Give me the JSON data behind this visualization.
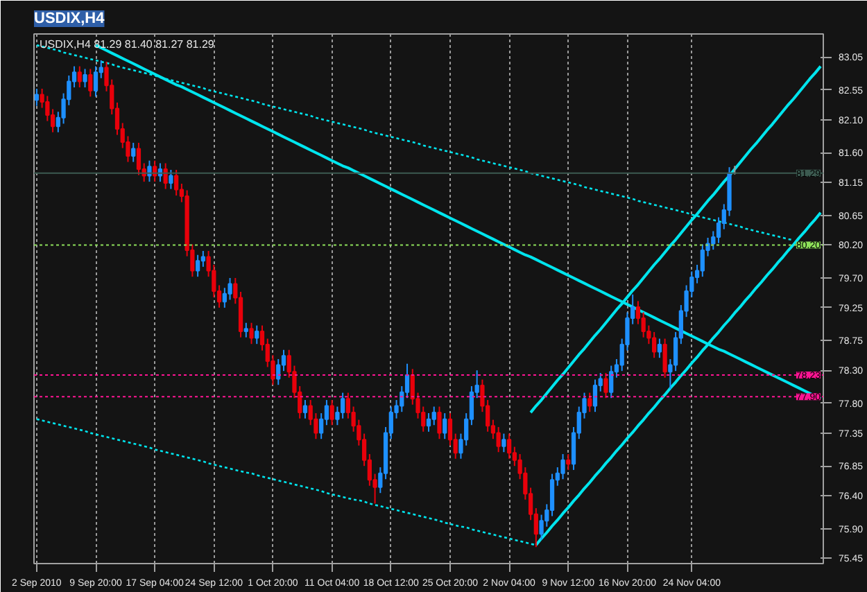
{
  "chart_data": {
    "type": "candlestick",
    "title": "USDIX,H4",
    "annotations": [
      "USDIX,H4  81.29 81.40 81.27 81.29"
    ],
    "categories": [
      "2 Sep 2010",
      null,
      null,
      null,
      null,
      null,
      null,
      null,
      null,
      null,
      null,
      "9 Sep 20:00",
      null,
      null,
      null,
      null,
      null,
      null,
      null,
      null,
      null,
      null,
      "17 Sep 04:00",
      null,
      null,
      null,
      null,
      null,
      null,
      null,
      null,
      null,
      null,
      "24 Sep 12:00",
      null,
      null,
      null,
      null,
      null,
      null,
      null,
      null,
      null,
      null,
      "1 Oct 20:00",
      null,
      null,
      null,
      null,
      null,
      null,
      null,
      null,
      null,
      null,
      "11 Oct 04:00",
      null,
      null,
      null,
      null,
      null,
      null,
      null,
      null,
      null,
      null,
      "18 Oct 12:00",
      null,
      null,
      null,
      null,
      null,
      null,
      null,
      null,
      null,
      null,
      "25 Oct 20:00",
      null,
      null,
      null,
      null,
      null,
      null,
      null,
      null,
      null,
      null,
      "2 Nov 04:00",
      null,
      null,
      null,
      null,
      null,
      null,
      null,
      null,
      null,
      null,
      "9 Nov 12:00",
      null,
      null,
      null,
      null,
      null,
      null,
      null,
      null,
      null,
      null,
      "16 Nov 20:00",
      null,
      null,
      null,
      null,
      null,
      null,
      null,
      null,
      null,
      null,
      null,
      "24 Nov 04:00",
      null,
      null,
      null,
      null,
      null,
      null,
      null,
      null,
      null,
      null,
      null,
      null,
      null,
      null,
      null,
      null,
      null,
      null,
      null,
      null,
      null,
      null,
      null,
      null
    ],
    "ohlc": [
      [
        82.4,
        82.57,
        82.31,
        82.48
      ],
      [
        82.48,
        82.57,
        82.28,
        82.37
      ],
      [
        82.37,
        82.46,
        82.08,
        82.17
      ],
      [
        82.17,
        82.26,
        81.91,
        82.0
      ],
      [
        82.0,
        82.22,
        81.91,
        82.13
      ],
      [
        82.13,
        82.5,
        82.04,
        82.41
      ],
      [
        82.41,
        82.77,
        82.32,
        82.68
      ],
      [
        82.68,
        82.91,
        82.59,
        82.82
      ],
      [
        82.82,
        82.91,
        82.59,
        82.68
      ],
      [
        82.68,
        82.87,
        82.59,
        82.78
      ],
      [
        82.78,
        82.87,
        82.45,
        82.54
      ],
      [
        82.54,
        82.91,
        82.45,
        82.82
      ],
      [
        82.82,
        83.0,
        82.73,
        82.89
      ],
      [
        82.89,
        82.98,
        82.53,
        82.62
      ],
      [
        82.62,
        82.71,
        82.18,
        82.27
      ],
      [
        82.27,
        82.36,
        81.87,
        81.96
      ],
      [
        81.96,
        82.05,
        81.67,
        81.76
      ],
      [
        81.76,
        81.85,
        81.46,
        81.55
      ],
      [
        81.55,
        81.75,
        81.46,
        81.66
      ],
      [
        81.66,
        81.75,
        81.26,
        81.35
      ],
      [
        81.35,
        81.44,
        81.16,
        81.25
      ],
      [
        81.25,
        81.48,
        81.16,
        81.39
      ],
      [
        81.39,
        81.48,
        81.16,
        81.25
      ],
      [
        81.25,
        81.44,
        81.16,
        81.35
      ],
      [
        81.35,
        81.44,
        81.05,
        81.14
      ],
      [
        81.14,
        81.34,
        81.05,
        81.25
      ],
      [
        81.25,
        81.34,
        80.95,
        81.04
      ],
      [
        81.04,
        81.13,
        80.85,
        80.94
      ],
      [
        80.94,
        81.03,
        80.03,
        80.12
      ],
      [
        80.12,
        80.21,
        79.72,
        79.81
      ],
      [
        79.81,
        80.05,
        79.72,
        79.96
      ],
      [
        79.96,
        80.11,
        79.87,
        80.02
      ],
      [
        80.02,
        80.11,
        79.72,
        79.81
      ],
      [
        79.81,
        79.9,
        79.41,
        79.5
      ],
      [
        79.5,
        79.59,
        79.25,
        79.34
      ],
      [
        79.34,
        79.55,
        79.25,
        79.46
      ],
      [
        79.46,
        79.7,
        79.37,
        79.61
      ],
      [
        79.61,
        79.7,
        79.31,
        79.4
      ],
      [
        79.4,
        79.49,
        78.8,
        78.89
      ],
      [
        78.89,
        79.02,
        78.8,
        78.93
      ],
      [
        78.93,
        79.02,
        78.7,
        78.79
      ],
      [
        78.79,
        78.98,
        78.7,
        78.89
      ],
      [
        78.89,
        78.98,
        78.6,
        78.69
      ],
      [
        78.69,
        78.78,
        78.35,
        78.44
      ],
      [
        78.44,
        78.53,
        78.08,
        78.17
      ],
      [
        78.17,
        78.47,
        78.08,
        78.38
      ],
      [
        78.38,
        78.61,
        78.29,
        78.52
      ],
      [
        78.52,
        78.61,
        78.19,
        78.28
      ],
      [
        78.28,
        78.37,
        77.88,
        77.97
      ],
      [
        77.97,
        78.06,
        77.57,
        77.66
      ],
      [
        77.66,
        77.85,
        77.57,
        77.76
      ],
      [
        77.76,
        77.85,
        77.47,
        77.56
      ],
      [
        77.56,
        77.65,
        77.26,
        77.35
      ],
      [
        77.35,
        77.65,
        77.26,
        77.56
      ],
      [
        77.56,
        77.85,
        77.47,
        77.76
      ],
      [
        77.76,
        77.85,
        77.47,
        77.56
      ],
      [
        77.56,
        77.75,
        77.47,
        77.66
      ],
      [
        77.66,
        77.96,
        77.57,
        77.87
      ],
      [
        77.87,
        77.96,
        77.57,
        77.66
      ],
      [
        77.66,
        77.75,
        77.37,
        77.46
      ],
      [
        77.46,
        77.55,
        77.16,
        77.25
      ],
      [
        77.25,
        77.34,
        76.85,
        76.94
      ],
      [
        76.94,
        77.03,
        76.55,
        76.64
      ],
      [
        76.64,
        76.73,
        76.28,
        76.53
      ],
      [
        76.53,
        76.83,
        76.44,
        76.74
      ],
      [
        76.74,
        77.44,
        76.65,
        77.35
      ],
      [
        77.35,
        77.75,
        77.26,
        77.66
      ],
      [
        77.66,
        77.85,
        77.57,
        77.76
      ],
      [
        77.76,
        78.06,
        77.67,
        77.97
      ],
      [
        77.97,
        78.4,
        77.88,
        78.23
      ],
      [
        78.23,
        78.32,
        77.78,
        77.87
      ],
      [
        77.87,
        77.96,
        77.57,
        77.66
      ],
      [
        77.66,
        77.75,
        77.37,
        77.46
      ],
      [
        77.46,
        77.65,
        77.37,
        77.56
      ],
      [
        77.56,
        77.75,
        77.47,
        77.66
      ],
      [
        77.66,
        77.75,
        77.26,
        77.35
      ],
      [
        77.35,
        77.65,
        77.26,
        77.56
      ],
      [
        77.56,
        77.65,
        77.16,
        77.25
      ],
      [
        77.25,
        77.34,
        76.96,
        77.05
      ],
      [
        77.05,
        77.34,
        76.96,
        77.25
      ],
      [
        77.25,
        77.65,
        77.16,
        77.56
      ],
      [
        77.56,
        78.06,
        77.47,
        77.97
      ],
      [
        77.97,
        78.3,
        77.88,
        78.07
      ],
      [
        78.07,
        78.16,
        77.67,
        77.76
      ],
      [
        77.76,
        77.85,
        77.37,
        77.46
      ],
      [
        77.46,
        77.55,
        77.26,
        77.35
      ],
      [
        77.35,
        77.44,
        77.06,
        77.15
      ],
      [
        77.15,
        77.34,
        77.06,
        77.25
      ],
      [
        77.25,
        77.34,
        76.96,
        77.05
      ],
      [
        77.05,
        77.14,
        76.85,
        76.94
      ],
      [
        76.94,
        77.03,
        76.65,
        76.74
      ],
      [
        76.74,
        76.83,
        76.34,
        76.43
      ],
      [
        76.43,
        76.52,
        76.03,
        76.12
      ],
      [
        76.12,
        76.21,
        75.62,
        75.82
      ],
      [
        75.82,
        76.11,
        75.73,
        76.02
      ],
      [
        76.02,
        76.27,
        75.93,
        76.18
      ],
      [
        76.18,
        76.73,
        76.09,
        76.64
      ],
      [
        76.64,
        76.83,
        76.55,
        76.74
      ],
      [
        76.74,
        77.03,
        76.65,
        76.94
      ],
      [
        76.94,
        77.03,
        76.79,
        76.88
      ],
      [
        76.88,
        77.44,
        76.79,
        77.35
      ],
      [
        77.35,
        77.75,
        77.26,
        77.66
      ],
      [
        77.66,
        77.96,
        77.57,
        77.87
      ],
      [
        77.87,
        77.96,
        77.67,
        77.76
      ],
      [
        77.76,
        78.16,
        77.67,
        78.07
      ],
      [
        78.07,
        78.26,
        77.98,
        78.17
      ],
      [
        78.17,
        78.26,
        77.88,
        77.97
      ],
      [
        77.97,
        78.37,
        77.88,
        78.28
      ],
      [
        78.28,
        78.47,
        78.19,
        78.38
      ],
      [
        78.38,
        78.78,
        78.29,
        78.69
      ],
      [
        78.69,
        79.18,
        78.6,
        79.09
      ],
      [
        79.09,
        79.45,
        79.0,
        79.26
      ],
      [
        79.26,
        79.35,
        79.0,
        79.09
      ],
      [
        79.09,
        79.18,
        78.8,
        78.89
      ],
      [
        78.89,
        78.98,
        78.7,
        78.79
      ],
      [
        78.79,
        78.88,
        78.49,
        78.58
      ],
      [
        78.58,
        78.78,
        78.49,
        78.69
      ],
      [
        78.69,
        78.78,
        78.19,
        78.28
      ],
      [
        78.28,
        78.47,
        78.02,
        78.38
      ],
      [
        78.38,
        78.88,
        78.29,
        78.79
      ],
      [
        78.79,
        79.29,
        78.7,
        79.2
      ],
      [
        79.2,
        79.59,
        79.11,
        79.5
      ],
      [
        79.5,
        79.8,
        79.41,
        79.71
      ],
      [
        79.71,
        79.9,
        79.62,
        79.81
      ],
      [
        79.81,
        80.21,
        79.72,
        80.12
      ],
      [
        80.12,
        80.31,
        80.03,
        80.22
      ],
      [
        80.22,
        80.41,
        80.13,
        80.32
      ],
      [
        80.32,
        80.62,
        80.23,
        80.53
      ],
      [
        80.53,
        80.82,
        80.44,
        80.73
      ],
      [
        80.73,
        81.38,
        80.64,
        81.29
      ],
      [
        81.29,
        81.4,
        81.27,
        81.29
      ],
      null,
      null,
      null,
      null,
      null,
      null,
      null,
      null,
      null,
      null,
      null,
      null,
      null,
      null,
      null,
      null
    ],
    "colors": [
      "#1e90ff",
      "#e8000b",
      "#e8000b",
      "#e8000b",
      "#1e90ff",
      "#1e90ff",
      "#1e90ff",
      "#1e90ff",
      "#e8000b",
      "#1e90ff",
      "#e8000b",
      "#1e90ff",
      "#1e90ff",
      "#e8000b",
      "#e8000b",
      "#e8000b",
      "#e8000b",
      "#e8000b",
      "#1e90ff",
      "#e8000b",
      "#e8000b",
      "#1e90ff",
      "#e8000b",
      "#1e90ff",
      "#e8000b",
      "#1e90ff",
      "#e8000b",
      "#e8000b",
      "#e8000b",
      "#e8000b",
      "#1e90ff",
      "#1e90ff",
      "#e8000b",
      "#e8000b",
      "#e8000b",
      "#1e90ff",
      "#1e90ff",
      "#e8000b",
      "#e8000b",
      "#1e90ff",
      "#e8000b",
      "#1e90ff",
      "#e8000b",
      "#e8000b",
      "#e8000b",
      "#1e90ff",
      "#1e90ff",
      "#e8000b",
      "#e8000b",
      "#e8000b",
      "#1e90ff",
      "#e8000b",
      "#e8000b",
      "#1e90ff",
      "#1e90ff",
      "#e8000b",
      "#1e90ff",
      "#1e90ff",
      "#e8000b",
      "#e8000b",
      "#e8000b",
      "#e8000b",
      "#e8000b",
      "#e8000b",
      "#1e90ff",
      "#1e90ff",
      "#1e90ff",
      "#1e90ff",
      "#1e90ff",
      "#1e90ff",
      "#e8000b",
      "#e8000b",
      "#e8000b",
      "#1e90ff",
      "#1e90ff",
      "#e8000b",
      "#1e90ff",
      "#e8000b",
      "#e8000b",
      "#1e90ff",
      "#1e90ff",
      "#1e90ff",
      "#1e90ff",
      "#e8000b",
      "#e8000b",
      "#e8000b",
      "#e8000b",
      "#1e90ff",
      "#e8000b",
      "#e8000b",
      "#e8000b",
      "#e8000b",
      "#e8000b",
      "#e8000b",
      "#1e90ff",
      "#1e90ff",
      "#1e90ff",
      "#1e90ff",
      "#1e90ff",
      "#e8000b",
      "#1e90ff",
      "#1e90ff",
      "#1e90ff",
      "#e8000b",
      "#1e90ff",
      "#1e90ff",
      "#e8000b",
      "#1e90ff",
      "#1e90ff",
      "#1e90ff",
      "#1e90ff",
      "#1e90ff",
      "#e8000b",
      "#e8000b",
      "#e8000b",
      "#e8000b",
      "#1e90ff",
      "#e8000b",
      "#1e90ff",
      "#1e90ff",
      "#1e90ff",
      "#1e90ff",
      "#1e90ff",
      "#1e90ff",
      "#1e90ff",
      "#1e90ff",
      "#1e90ff",
      "#1e90ff",
      "#1e90ff",
      "#1e90ff",
      "#a0a0a0",
      null,
      null,
      null,
      null,
      null,
      null,
      null,
      null,
      null,
      null,
      null,
      null,
      null,
      null,
      null,
      null
    ],
    "series": [
      {
        "type": "line",
        "color": "#00e5ee",
        "line_style": "solid",
        "values": [
          null,
          null,
          null,
          null,
          null,
          null,
          null,
          null,
          null,
          null,
          null,
          83.23,
          83.19,
          83.15,
          83.11,
          83.07,
          83.03,
          82.99,
          82.95,
          82.91,
          82.87,
          82.83,
          82.79,
          82.75,
          82.71,
          82.67,
          82.63,
          82.6,
          82.56,
          82.52,
          82.48,
          82.44,
          82.4,
          82.36,
          82.32,
          82.28,
          82.24,
          82.2,
          82.16,
          82.12,
          82.08,
          82.04,
          82.0,
          81.96,
          81.92,
          81.88,
          81.84,
          81.8,
          81.76,
          81.72,
          81.68,
          81.64,
          81.6,
          81.56,
          81.52,
          81.48,
          81.44,
          81.4,
          81.37,
          81.33,
          81.29,
          81.25,
          81.21,
          81.17,
          81.13,
          81.09,
          81.05,
          81.01,
          80.97,
          80.93,
          80.89,
          80.85,
          80.81,
          80.77,
          80.73,
          80.69,
          80.65,
          80.61,
          80.57,
          80.53,
          80.49,
          80.45,
          80.41,
          80.37,
          80.33,
          80.29,
          80.25,
          80.21,
          80.17,
          80.13,
          80.09,
          80.05,
          80.02,
          79.98,
          79.94,
          79.9,
          79.86,
          79.82,
          79.78,
          79.74,
          79.7,
          79.66,
          79.62,
          79.58,
          79.54,
          79.5,
          79.46,
          79.42,
          79.38,
          79.34,
          79.3,
          79.26,
          79.22,
          79.18,
          79.14,
          79.1,
          79.06,
          79.02,
          78.98,
          78.94,
          78.9,
          78.86,
          78.82,
          78.78,
          78.74,
          78.7,
          78.66,
          78.62,
          78.59,
          78.55,
          78.51,
          78.47,
          78.43,
          78.39,
          78.35,
          78.31,
          78.27,
          78.23,
          78.19,
          78.15,
          78.11,
          78.07,
          78.03,
          77.99,
          77.95,
          77.91,
          77.87
        ]
      },
      {
        "type": "line",
        "color": "#00e5ee",
        "line_style": "dotted",
        "values": [
          83.23,
          83.21,
          83.19,
          83.17,
          83.15,
          83.12,
          83.1,
          83.08,
          83.06,
          83.04,
          83.02,
          83.0,
          82.98,
          82.96,
          82.94,
          82.91,
          82.89,
          82.87,
          82.85,
          82.83,
          82.81,
          82.79,
          82.77,
          82.74,
          82.72,
          82.7,
          82.68,
          82.66,
          82.64,
          82.62,
          82.6,
          82.58,
          82.55,
          82.53,
          82.51,
          82.49,
          82.47,
          82.45,
          82.43,
          82.41,
          82.39,
          82.37,
          82.34,
          82.32,
          82.3,
          82.28,
          82.26,
          82.24,
          82.22,
          82.2,
          82.18,
          82.16,
          82.13,
          82.11,
          82.09,
          82.07,
          82.05,
          82.03,
          82.01,
          81.99,
          81.97,
          81.95,
          81.92,
          81.9,
          81.88,
          81.86,
          81.84,
          81.82,
          81.8,
          81.78,
          81.76,
          81.74,
          81.71,
          81.69,
          81.67,
          81.65,
          81.63,
          81.61,
          81.59,
          81.57,
          81.55,
          81.53,
          81.5,
          81.48,
          81.46,
          81.44,
          81.42,
          81.4,
          81.38,
          81.36,
          81.34,
          81.32,
          81.29,
          81.27,
          81.25,
          81.23,
          81.21,
          81.19,
          81.17,
          81.15,
          81.13,
          81.11,
          81.08,
          81.06,
          81.04,
          81.02,
          81.0,
          80.98,
          80.96,
          80.94,
          80.92,
          80.9,
          80.87,
          80.85,
          80.83,
          80.81,
          80.79,
          80.77,
          80.75,
          80.73,
          80.71,
          80.69,
          80.66,
          80.64,
          80.62,
          80.6,
          80.58,
          80.56,
          80.54,
          80.52,
          80.5,
          80.48,
          80.45,
          80.43,
          80.41,
          80.39,
          80.37,
          80.35,
          80.33,
          80.31,
          80.29,
          80.27,
          null,
          null,
          null,
          null,
          null
        ]
      },
      {
        "type": "line",
        "color": "#00e5ee",
        "line_style": "dotted",
        "values": [
          77.56,
          77.54,
          77.52,
          77.5,
          77.48,
          77.46,
          77.44,
          77.42,
          77.4,
          77.38,
          77.35,
          77.33,
          77.31,
          77.29,
          77.27,
          77.25,
          77.23,
          77.21,
          77.19,
          77.17,
          77.15,
          77.13,
          77.1,
          77.08,
          77.06,
          77.04,
          77.02,
          77.0,
          76.98,
          76.96,
          76.94,
          76.92,
          76.89,
          76.87,
          76.85,
          76.83,
          76.81,
          76.79,
          76.77,
          76.75,
          76.74,
          76.71,
          76.69,
          76.67,
          76.65,
          76.63,
          76.61,
          76.59,
          76.57,
          76.55,
          76.53,
          76.51,
          76.49,
          76.47,
          76.44,
          76.42,
          76.4,
          76.38,
          76.36,
          76.34,
          76.33,
          76.31,
          76.28,
          76.26,
          76.24,
          76.22,
          76.2,
          76.18,
          76.16,
          76.14,
          76.12,
          76.1,
          76.08,
          76.06,
          76.04,
          76.02,
          75.99,
          75.97,
          75.95,
          75.93,
          75.92,
          75.89,
          75.87,
          75.85,
          75.83,
          75.81,
          75.79,
          75.77,
          75.75,
          75.73,
          75.71,
          75.69,
          75.67,
          75.65,
          null,
          null,
          null,
          null,
          null,
          null,
          null,
          null,
          null,
          null,
          null,
          null,
          null,
          null,
          null,
          null,
          null,
          null,
          null,
          null,
          null,
          null,
          null,
          null,
          null,
          null,
          null,
          null,
          null,
          null,
          null,
          null,
          null,
          null,
          null,
          null,
          null,
          null,
          null,
          null,
          null,
          null,
          null,
          null,
          null,
          null,
          null,
          null,
          null,
          null,
          null,
          null,
          null
        ]
      },
      {
        "type": "line",
        "color": "#00e5ee",
        "line_style": "solid",
        "values": [
          null,
          null,
          null,
          null,
          null,
          null,
          null,
          null,
          null,
          null,
          null,
          null,
          null,
          null,
          null,
          null,
          null,
          null,
          null,
          null,
          null,
          null,
          null,
          null,
          null,
          null,
          null,
          null,
          null,
          null,
          null,
          null,
          null,
          null,
          null,
          null,
          null,
          null,
          null,
          null,
          null,
          null,
          null,
          null,
          null,
          null,
          null,
          null,
          null,
          null,
          null,
          null,
          null,
          null,
          null,
          null,
          null,
          null,
          null,
          null,
          null,
          null,
          null,
          null,
          null,
          null,
          null,
          null,
          null,
          null,
          null,
          null,
          null,
          null,
          null,
          null,
          null,
          null,
          null,
          null,
          null,
          null,
          null,
          null,
          null,
          null,
          null,
          null,
          null,
          null,
          null,
          null,
          null,
          75.65,
          75.75,
          75.84,
          75.94,
          76.03,
          76.13,
          76.22,
          76.32,
          76.41,
          76.51,
          76.6,
          76.7,
          76.79,
          76.89,
          76.98,
          77.08,
          77.17,
          77.27,
          77.36,
          77.46,
          77.55,
          77.65,
          77.74,
          77.84,
          77.93,
          78.03,
          78.12,
          78.22,
          78.31,
          78.41,
          78.5,
          78.6,
          78.69,
          78.79,
          78.88,
          78.98,
          79.07,
          79.17,
          79.26,
          79.36,
          79.45,
          79.55,
          79.64,
          79.74,
          79.83,
          79.93,
          80.02,
          80.12,
          80.21,
          80.31,
          80.4,
          80.5,
          80.59,
          80.69
        ]
      },
      {
        "type": "line",
        "color": "#00e5ee",
        "line_style": "solid",
        "values": [
          null,
          null,
          null,
          null,
          null,
          null,
          null,
          null,
          null,
          null,
          null,
          null,
          null,
          null,
          null,
          null,
          null,
          null,
          null,
          null,
          null,
          null,
          null,
          null,
          null,
          null,
          null,
          null,
          null,
          null,
          null,
          null,
          null,
          null,
          null,
          null,
          null,
          null,
          null,
          null,
          null,
          null,
          null,
          null,
          null,
          null,
          null,
          null,
          null,
          null,
          null,
          null,
          null,
          null,
          null,
          null,
          null,
          null,
          null,
          null,
          null,
          null,
          null,
          null,
          null,
          null,
          null,
          null,
          null,
          null,
          null,
          null,
          null,
          null,
          null,
          null,
          null,
          null,
          null,
          null,
          null,
          null,
          null,
          null,
          null,
          null,
          null,
          null,
          null,
          null,
          null,
          null,
          77.66,
          77.76,
          77.85,
          77.95,
          78.05,
          78.15,
          78.24,
          78.34,
          78.44,
          78.54,
          78.63,
          78.73,
          78.83,
          78.92,
          79.02,
          79.12,
          79.22,
          79.31,
          79.41,
          79.51,
          79.6,
          79.7,
          79.8,
          79.9,
          79.99,
          80.09,
          80.19,
          80.28,
          80.38,
          80.48,
          80.58,
          80.67,
          80.77,
          80.87,
          80.96,
          81.06,
          81.16,
          81.25,
          81.35,
          81.45,
          81.55,
          81.65,
          81.74,
          81.84,
          81.94,
          82.03,
          82.13,
          82.23,
          82.33,
          82.42,
          82.52,
          82.62,
          82.72,
          82.81,
          82.91
        ]
      }
    ],
    "ref_lines": [
      {
        "axis": "y",
        "value": 81.29,
        "label": "81.29",
        "color": "#3c5a50",
        "line_style": "solid"
      },
      {
        "axis": "y",
        "value": 80.2,
        "label": "80.20",
        "color": "#8ee05a",
        "line_style": "dotted"
      },
      {
        "axis": "y",
        "value": 78.23,
        "label": "78.23",
        "color": "#ff1493",
        "line_style": "dotted"
      },
      {
        "axis": "y",
        "value": 77.9,
        "label": "77.90",
        "color": "#ff1493",
        "line_style": "dotted"
      }
    ],
    "ylim": [
      75.37,
      83.4
    ],
    "yticks": [
      {
        "value": 75.45,
        "label": "75.45"
      },
      {
        "value": 75.9,
        "label": "75.90"
      },
      {
        "value": 76.4,
        "label": "76.40"
      },
      {
        "value": 76.85,
        "label": "76.85"
      },
      {
        "value": 77.35,
        "label": "77.35"
      },
      {
        "value": 77.8,
        "label": "77.80"
      },
      {
        "value": 78.3,
        "label": "78.30"
      },
      {
        "value": 78.75,
        "label": "78.75"
      },
      {
        "value": 79.25,
        "label": "79.25"
      },
      {
        "value": 79.7,
        "label": "79.70"
      },
      {
        "value": 80.2,
        "label": "80.20"
      },
      {
        "value": 80.65,
        "label": "80.65"
      },
      {
        "value": 81.15,
        "label": "81.15"
      },
      {
        "value": 81.6,
        "label": "81.60"
      },
      {
        "value": 82.1,
        "label": "82.10"
      },
      {
        "value": 82.55,
        "label": "82.55"
      },
      {
        "value": 83.05,
        "label": "83.05"
      }
    ],
    "grid": "x"
  }
}
